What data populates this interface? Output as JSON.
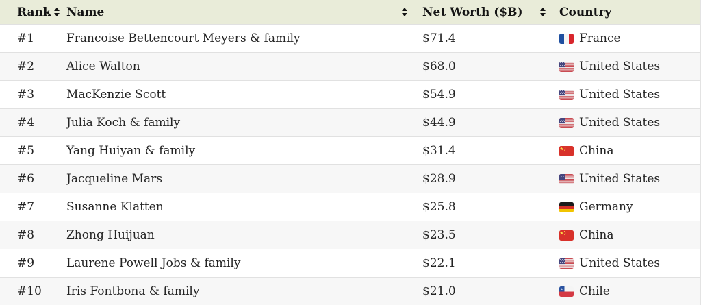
{
  "table": {
    "columns": [
      {
        "label": "Rank",
        "sortable": true
      },
      {
        "label": "Name",
        "sortable": true
      },
      {
        "label": "Net Worth ($B)",
        "sortable": true
      },
      {
        "label": "Country",
        "sortable": true
      }
    ],
    "rows": [
      {
        "rank": "#1",
        "name": "Francoise Bettencourt Meyers & family",
        "net_worth": "$71.4",
        "country": "France",
        "flag": "fr"
      },
      {
        "rank": "#2",
        "name": "Alice Walton",
        "net_worth": "$68.0",
        "country": "United States",
        "flag": "us"
      },
      {
        "rank": "#3",
        "name": "MacKenzie Scott",
        "net_worth": "$54.9",
        "country": "United States",
        "flag": "us"
      },
      {
        "rank": "#4",
        "name": "Julia Koch & family",
        "net_worth": "$44.9",
        "country": "United States",
        "flag": "us"
      },
      {
        "rank": "#5",
        "name": "Yang Huiyan & family",
        "net_worth": "$31.4",
        "country": "China",
        "flag": "cn"
      },
      {
        "rank": "#6",
        "name": "Jacqueline Mars",
        "net_worth": "$28.9",
        "country": "United States",
        "flag": "us"
      },
      {
        "rank": "#7",
        "name": "Susanne Klatten",
        "net_worth": "$25.8",
        "country": "Germany",
        "flag": "de"
      },
      {
        "rank": "#8",
        "name": "Zhong Huijuan",
        "net_worth": "$23.5",
        "country": "China",
        "flag": "cn"
      },
      {
        "rank": "#9",
        "name": "Laurene Powell Jobs & family",
        "net_worth": "$22.1",
        "country": "United States",
        "flag": "us"
      },
      {
        "rank": "#10",
        "name": "Iris Fontbona & family",
        "net_worth": "$21.0",
        "country": "Chile",
        "flag": "cl"
      }
    ]
  },
  "colors": {
    "header_bg": "#e9ecd9",
    "row_stripe": "#f7f7f7",
    "divider": "#e1e1e1",
    "header_text": "#141414",
    "body_text": "#242424"
  }
}
